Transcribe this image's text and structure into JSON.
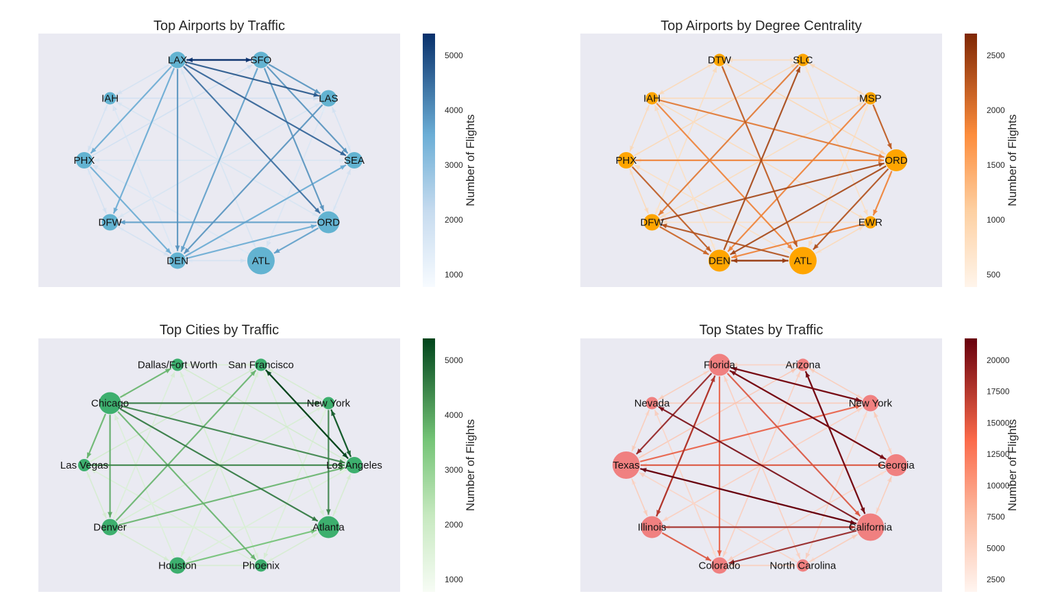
{
  "panels": [
    {
      "title": "Top Airports by Traffic",
      "colormap": "blues",
      "node_color": "#63B3D1",
      "colorbar": {
        "label": "Number of Flights",
        "ticks": [
          "1000",
          "2000",
          "3000",
          "4000",
          "5000"
        ]
      },
      "nodes": [
        "SFO",
        "LAS",
        "SEA",
        "ORD",
        "ATL",
        "DEN",
        "DFW",
        "PHX",
        "IAH",
        "LAX"
      ],
      "node_size": [
        "medium",
        "medium",
        "medium",
        "large",
        "largest",
        "medium",
        "medium",
        "medium",
        "small",
        "medium"
      ],
      "strong_edges": [
        {
          "from": "LAX",
          "to": "SFO",
          "level": 1.0
        },
        {
          "from": "SFO",
          "to": "LAX",
          "level": 1.0
        },
        {
          "from": "LAX",
          "to": "LAS",
          "level": 0.85
        },
        {
          "from": "LAX",
          "to": "SEA",
          "level": 0.8
        },
        {
          "from": "LAX",
          "to": "ORD",
          "level": 0.75
        },
        {
          "from": "SFO",
          "to": "ORD",
          "level": 0.6
        },
        {
          "from": "SFO",
          "to": "LAS",
          "level": 0.6
        },
        {
          "from": "SFO",
          "to": "SEA",
          "level": 0.6
        },
        {
          "from": "LAS",
          "to": "DEN",
          "level": 0.6
        },
        {
          "from": "LAX",
          "to": "DEN",
          "level": 0.6
        },
        {
          "from": "SFO",
          "to": "DEN",
          "level": 0.55
        },
        {
          "from": "ORD",
          "to": "DFW",
          "level": 0.55
        },
        {
          "from": "ORD",
          "to": "ATL",
          "level": 0.55
        },
        {
          "from": "LAX",
          "to": "PHX",
          "level": 0.5
        },
        {
          "from": "LAX",
          "to": "DFW",
          "level": 0.5
        },
        {
          "from": "DEN",
          "to": "ORD",
          "level": 0.5
        },
        {
          "from": "DEN",
          "to": "SEA",
          "level": 0.5
        },
        {
          "from": "PHX",
          "to": "DEN",
          "level": 0.5
        }
      ]
    },
    {
      "title": "Top Airports by Degree Centrality",
      "colormap": "oranges",
      "node_color": "#FFA500",
      "colorbar": {
        "label": "Number of Flights",
        "ticks": [
          "500",
          "1000",
          "1500",
          "2000",
          "2500"
        ]
      },
      "nodes": [
        "SLC",
        "MSP",
        "ORD",
        "EWR",
        "ATL",
        "DEN",
        "DFW",
        "PHX",
        "IAH",
        "DTW"
      ],
      "node_size": [
        "small",
        "small",
        "large",
        "small",
        "largest",
        "large",
        "medium",
        "medium",
        "small",
        "small"
      ],
      "strong_edges": [
        {
          "from": "ATL",
          "to": "DEN",
          "level": 0.9
        },
        {
          "from": "DEN",
          "to": "ATL",
          "level": 0.9
        },
        {
          "from": "ORD",
          "to": "DEN",
          "level": 0.85
        },
        {
          "from": "DFW",
          "to": "ORD",
          "level": 0.85
        },
        {
          "from": "ORD",
          "to": "ATL",
          "level": 0.8
        },
        {
          "from": "ATL",
          "to": "DFW",
          "level": 0.8
        },
        {
          "from": "DEN",
          "to": "SLC",
          "level": 0.85
        },
        {
          "from": "DTW",
          "to": "ATL",
          "level": 0.75
        },
        {
          "from": "MSP",
          "to": "ORD",
          "level": 0.75
        },
        {
          "from": "PHX",
          "to": "DEN",
          "level": 0.75
        },
        {
          "from": "DFW",
          "to": "DEN",
          "level": 0.7
        },
        {
          "from": "IAH",
          "to": "ORD",
          "level": 0.6
        },
        {
          "from": "SLC",
          "to": "DFW",
          "level": 0.6
        },
        {
          "from": "PHX",
          "to": "ORD",
          "level": 0.55
        },
        {
          "from": "EWR",
          "to": "DEN",
          "level": 0.55
        },
        {
          "from": "IAH",
          "to": "ATL",
          "level": 0.55
        },
        {
          "from": "MSP",
          "to": "DEN",
          "level": 0.55
        },
        {
          "from": "ORD",
          "to": "EWR",
          "level": 0.55
        }
      ]
    },
    {
      "title": "Top Cities by Traffic",
      "colormap": "greens",
      "node_color": "#3DAF6E",
      "colorbar": {
        "label": "Number of Flights",
        "ticks": [
          "1000",
          "2000",
          "3000",
          "4000",
          "5000"
        ]
      },
      "nodes": [
        "San Francisco",
        "New York",
        "Los Angeles",
        "Atlanta",
        "Phoenix",
        "Houston",
        "Denver",
        "Las Vegas",
        "Chicago",
        "Dallas/Fort Worth"
      ],
      "node_size": [
        "small",
        "small",
        "medium",
        "large",
        "small",
        "medium",
        "medium",
        "small",
        "large",
        "small"
      ],
      "strong_edges": [
        {
          "from": "San Francisco",
          "to": "Los Angeles",
          "level": 1.0
        },
        {
          "from": "Los Angeles",
          "to": "San Francisco",
          "level": 1.0
        },
        {
          "from": "New York",
          "to": "Los Angeles",
          "level": 0.9
        },
        {
          "from": "Los Angeles",
          "to": "New York",
          "level": 0.9
        },
        {
          "from": "Chicago",
          "to": "New York",
          "level": 0.8
        },
        {
          "from": "Chicago",
          "to": "Atlanta",
          "level": 0.8
        },
        {
          "from": "Chicago",
          "to": "Los Angeles",
          "level": 0.75
        },
        {
          "from": "Las Vegas",
          "to": "Los Angeles",
          "level": 0.75
        },
        {
          "from": "New York",
          "to": "Atlanta",
          "level": 0.75
        },
        {
          "from": "Chicago",
          "to": "Denver",
          "level": 0.6
        },
        {
          "from": "Denver",
          "to": "San Francisco",
          "level": 0.55
        },
        {
          "from": "Denver",
          "to": "Los Angeles",
          "level": 0.55
        },
        {
          "from": "Chicago",
          "to": "Las Vegas",
          "level": 0.55
        },
        {
          "from": "Chicago",
          "to": "Phoenix",
          "level": 0.55
        },
        {
          "from": "Chicago",
          "to": "Dallas/Fort Worth",
          "level": 0.55
        },
        {
          "from": "Houston",
          "to": "Atlanta",
          "level": 0.5
        }
      ]
    },
    {
      "title": "Top States by Traffic",
      "colormap": "reds",
      "node_color": "#F08080",
      "colorbar": {
        "label": "Number of Flights",
        "ticks": [
          "2500",
          "5000",
          "7500",
          "10000",
          "12500",
          "15000",
          "17500",
          "20000"
        ]
      },
      "nodes": [
        "Arizona",
        "New York",
        "Georgia",
        "California",
        "North Carolina",
        "Colorado",
        "Illinois",
        "Texas",
        "Nevada",
        "Florida"
      ],
      "node_size": [
        "small",
        "medium",
        "large",
        "largest",
        "small",
        "medium",
        "large",
        "largest",
        "small",
        "large"
      ],
      "strong_edges": [
        {
          "from": "California",
          "to": "Texas",
          "level": 1.0
        },
        {
          "from": "Texas",
          "to": "California",
          "level": 1.0
        },
        {
          "from": "Florida",
          "to": "New York",
          "level": 0.95
        },
        {
          "from": "New York",
          "to": "Florida",
          "level": 0.95
        },
        {
          "from": "Florida",
          "to": "Georgia",
          "level": 0.95
        },
        {
          "from": "Georgia",
          "to": "Florida",
          "level": 0.95
        },
        {
          "from": "California",
          "to": "Nevada",
          "level": 0.95
        },
        {
          "from": "California",
          "to": "Arizona",
          "level": 0.95
        },
        {
          "from": "Arizona",
          "to": "California",
          "level": 0.95
        },
        {
          "from": "Florida",
          "to": "Texas",
          "level": 0.85
        },
        {
          "from": "California",
          "to": "Colorado",
          "level": 0.85
        },
        {
          "from": "Illinois",
          "to": "California",
          "level": 0.8
        },
        {
          "from": "Illinois",
          "to": "Florida",
          "level": 0.75
        },
        {
          "from": "Florida",
          "to": "Illinois",
          "level": 0.7
        },
        {
          "from": "Texas",
          "to": "Georgia",
          "level": 0.6
        },
        {
          "from": "Texas",
          "to": "New York",
          "level": 0.55
        },
        {
          "from": "Florida",
          "to": "California",
          "level": 0.6
        },
        {
          "from": "Illinois",
          "to": "Colorado",
          "level": 0.6
        },
        {
          "from": "Florida",
          "to": "Colorado",
          "level": 0.55
        }
      ]
    }
  ]
}
